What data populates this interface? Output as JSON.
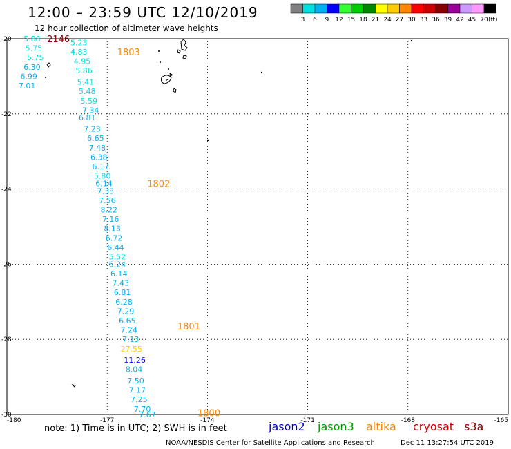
{
  "header": {
    "title": "12:00 – 23:59 UTC 12/10/2019",
    "subtitle": "12 hour collection of altimeter wave heights"
  },
  "colorbar": {
    "unit": "(ft)",
    "bins": [
      {
        "color": "#808080",
        "label": "3"
      },
      {
        "color": "#00e0e0",
        "label": "6"
      },
      {
        "color": "#00b0f0",
        "label": "9"
      },
      {
        "color": "#0000ff",
        "label": "12"
      },
      {
        "color": "#33ff33",
        "label": "15"
      },
      {
        "color": "#00cc00",
        "label": "18"
      },
      {
        "color": "#008800",
        "label": "21"
      },
      {
        "color": "#ffff00",
        "label": "24"
      },
      {
        "color": "#ffcc00",
        "label": "27"
      },
      {
        "color": "#ff8800",
        "label": "30"
      },
      {
        "color": "#ff0000",
        "label": "33"
      },
      {
        "color": "#cc0000",
        "label": "36"
      },
      {
        "color": "#880000",
        "label": "39"
      },
      {
        "color": "#990099",
        "label": "42"
      },
      {
        "color": "#cc99ff",
        "label": "45"
      },
      {
        "color": "#ff99ff",
        "label": "70"
      },
      {
        "color": "#000000",
        "label": ""
      }
    ]
  },
  "axes": {
    "lat_range": [
      -30,
      -20
    ],
    "lon_range": [
      -180,
      -165
    ],
    "lon_ticks": [
      "-180",
      "-177",
      "-174",
      "-171",
      "-168",
      "-165"
    ],
    "lat_ticks": [
      "-20",
      "-22",
      "-24",
      "-26",
      "-28",
      "-30"
    ]
  },
  "time_labels": [
    {
      "text": "2146",
      "lat": -20.0,
      "lon": -178.8,
      "color": "#880000"
    },
    {
      "text": "1803",
      "lat": -20.35,
      "lon": -176.7,
      "color": "#ff8800"
    },
    {
      "text": "1802",
      "lat": -23.85,
      "lon": -175.8,
      "color": "#ff8800"
    },
    {
      "text": "1801",
      "lat": -27.65,
      "lon": -174.9,
      "color": "#ff8800"
    },
    {
      "text": "1800",
      "lat": -29.95,
      "lon": -174.3,
      "color": "#ff8800"
    }
  ],
  "swh_tracks": [
    {
      "name": "track-west",
      "values": [
        {
          "text": "5.88",
          "lat": -20.0,
          "lon": -179.5,
          "color": "#00e0e0"
        },
        {
          "text": "5.75",
          "lat": -20.25,
          "lon": -179.45,
          "color": "#00e0e0"
        },
        {
          "text": "5.75",
          "lat": -20.5,
          "lon": -179.4,
          "color": "#00e0e0"
        },
        {
          "text": "6.30",
          "lat": -20.75,
          "lon": -179.5,
          "color": "#00b0f0"
        },
        {
          "text": "6.99",
          "lat": -21.0,
          "lon": -179.6,
          "color": "#00b0f0"
        },
        {
          "text": "7.01",
          "lat": -21.25,
          "lon": -179.65,
          "color": "#00b0f0"
        }
      ]
    },
    {
      "name": "track-east",
      "values": [
        {
          "text": "5.23",
          "lat": -20.1,
          "lon": -178.1,
          "color": "#00e0e0"
        },
        {
          "text": "4.83",
          "lat": -20.35,
          "lon": -178.1,
          "color": "#00e0e0"
        },
        {
          "text": "4.95",
          "lat": -20.6,
          "lon": -178.0,
          "color": "#00e0e0"
        },
        {
          "text": "5.86",
          "lat": -20.85,
          "lon": -177.95,
          "color": "#00e0e0"
        },
        {
          "text": "5.41",
          "lat": -21.15,
          "lon": -177.9,
          "color": "#00e0e0"
        },
        {
          "text": "5.48",
          "lat": -21.4,
          "lon": -177.85,
          "color": "#00e0e0"
        },
        {
          "text": "5.59",
          "lat": -21.65,
          "lon": -177.8,
          "color": "#00e0e0"
        },
        {
          "text": "7.34",
          "lat": -21.9,
          "lon": -177.75,
          "color": "#00b0f0"
        },
        {
          "text": "6.81",
          "lat": -22.1,
          "lon": -177.85,
          "color": "#00b0f0"
        },
        {
          "text": "7.23",
          "lat": -22.4,
          "lon": -177.7,
          "color": "#00b0f0"
        },
        {
          "text": "6.65",
          "lat": -22.65,
          "lon": -177.6,
          "color": "#00b0f0"
        },
        {
          "text": "7.48",
          "lat": -22.9,
          "lon": -177.55,
          "color": "#00b0f0"
        },
        {
          "text": "6.38",
          "lat": -23.15,
          "lon": -177.5,
          "color": "#00b0f0"
        },
        {
          "text": "6.17",
          "lat": -23.4,
          "lon": -177.45,
          "color": "#00b0f0"
        },
        {
          "text": "5.80",
          "lat": -23.65,
          "lon": -177.4,
          "color": "#00e0e0"
        },
        {
          "text": "6.14",
          "lat": -23.85,
          "lon": -177.35,
          "color": "#00b0f0"
        },
        {
          "text": "7.33",
          "lat": -24.05,
          "lon": -177.3,
          "color": "#00b0f0"
        },
        {
          "text": "7.56",
          "lat": -24.3,
          "lon": -177.25,
          "color": "#00b0f0"
        },
        {
          "text": "8.22",
          "lat": -24.55,
          "lon": -177.2,
          "color": "#00b0f0"
        },
        {
          "text": "7.16",
          "lat": -24.8,
          "lon": -177.15,
          "color": "#00b0f0"
        },
        {
          "text": "8.13",
          "lat": -25.05,
          "lon": -177.1,
          "color": "#00b0f0"
        },
        {
          "text": "6.72",
          "lat": -25.3,
          "lon": -177.05,
          "color": "#00b0f0"
        },
        {
          "text": "6.44",
          "lat": -25.55,
          "lon": -177.0,
          "color": "#00b0f0"
        },
        {
          "text": "5.52",
          "lat": -25.8,
          "lon": -176.95,
          "color": "#00e0e0"
        },
        {
          "text": "6.24",
          "lat": -26.0,
          "lon": -176.95,
          "color": "#00b0f0"
        },
        {
          "text": "6.14",
          "lat": -26.25,
          "lon": -176.9,
          "color": "#00b0f0"
        },
        {
          "text": "7.43",
          "lat": -26.5,
          "lon": -176.85,
          "color": "#00b0f0"
        },
        {
          "text": "6.81",
          "lat": -26.75,
          "lon": -176.8,
          "color": "#00b0f0"
        },
        {
          "text": "6.28",
          "lat": -27.0,
          "lon": -176.75,
          "color": "#00b0f0"
        },
        {
          "text": "7.29",
          "lat": -27.25,
          "lon": -176.7,
          "color": "#00b0f0"
        },
        {
          "text": "6.65",
          "lat": -27.5,
          "lon": -176.65,
          "color": "#00b0f0"
        },
        {
          "text": "7.24",
          "lat": -27.75,
          "lon": -176.6,
          "color": "#00b0f0"
        },
        {
          "text": "7.13",
          "lat": -28.0,
          "lon": -176.55,
          "color": "#00b0f0"
        },
        {
          "text": "27.55",
          "lat": -28.25,
          "lon": -176.6,
          "color": "#ffcc00"
        },
        {
          "text": "11.26",
          "lat": -28.55,
          "lon": -176.5,
          "color": "#0000ff"
        },
        {
          "text": "8.04",
          "lat": -28.8,
          "lon": -176.45,
          "color": "#00b0f0"
        },
        {
          "text": "7.50",
          "lat": -29.1,
          "lon": -176.4,
          "color": "#00b0f0"
        },
        {
          "text": "7.17",
          "lat": -29.35,
          "lon": -176.35,
          "color": "#00b0f0"
        },
        {
          "text": "7.25",
          "lat": -29.6,
          "lon": -176.3,
          "color": "#00b0f0"
        },
        {
          "text": "7.70",
          "lat": -29.85,
          "lon": -176.2,
          "color": "#00b0f0"
        },
        {
          "text": "7.67",
          "lat": -30.0,
          "lon": -176.05,
          "color": "#00b0f0"
        }
      ]
    }
  ],
  "note": "note: 1) Time is in UTC; 2) SWH is in feet",
  "missions": [
    {
      "label": "jason2",
      "color": "#0000cc"
    },
    {
      "label": "jason3",
      "color": "#009900"
    },
    {
      "label": "altika",
      "color": "#ff8800"
    },
    {
      "label": "cryosat",
      "color": "#cc0000"
    },
    {
      "label": "s3a",
      "color": "#880000"
    }
  ],
  "footer": {
    "credit": "NOAA/NESDIS Center for Satellite Applications and Research",
    "timestamp": "Dec 11 13:27:54 UTC 2019"
  }
}
